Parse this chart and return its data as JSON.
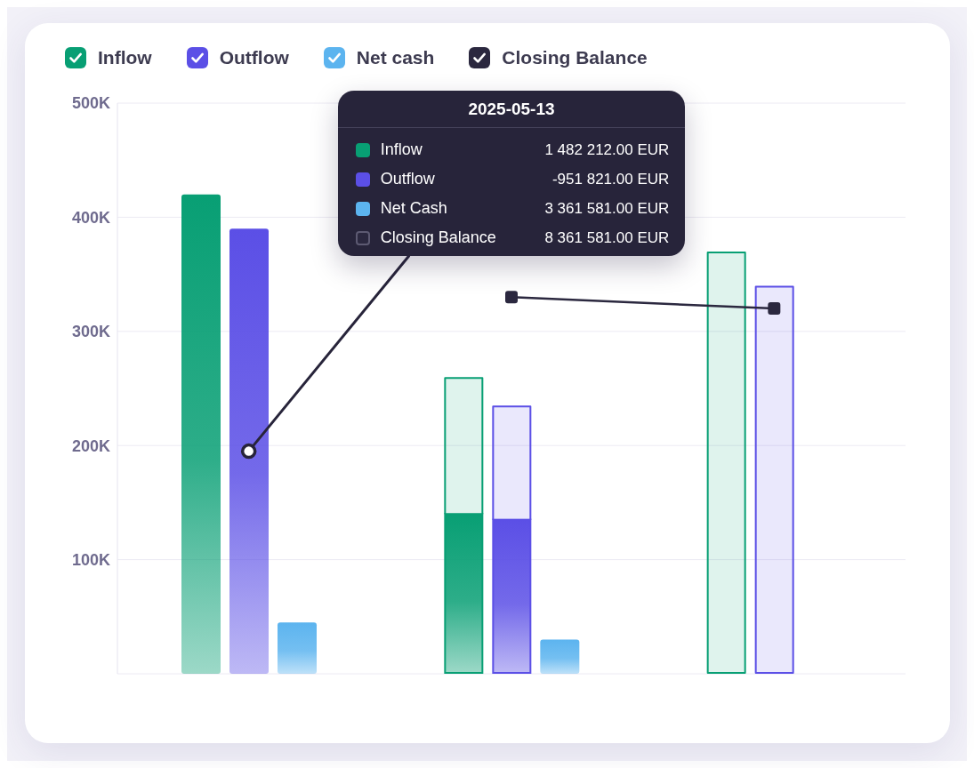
{
  "chart_data": {
    "type": "bar",
    "categories": [
      null,
      null,
      null
    ],
    "series": [
      {
        "name": "Inflow",
        "color": "#089f74",
        "values": [
          420000,
          140000,
          null
        ]
      },
      {
        "name": "Outflow",
        "color": "#5b4fe6",
        "values": [
          390000,
          135000,
          null
        ]
      },
      {
        "name": "Net cash",
        "color": "#5cb4ef",
        "values": [
          45000,
          30000,
          null
        ]
      },
      {
        "color": "#089f74",
        "base": [
          null,
          140000,
          0
        ],
        "values": [
          null,
          120000,
          370000
        ]
      },
      {
        "color": "#5b4fe6",
        "base": [
          null,
          135000,
          0
        ],
        "values": [
          null,
          100000,
          340000
        ]
      },
      {
        "name": "Closing Balance",
        "type": "line",
        "color": "#2b283f",
        "values": [
          null,
          330000,
          320000
        ]
      }
    ],
    "ylim": [
      0,
      500000
    ],
    "yticks": [
      {
        "value": 100000,
        "label": "100K"
      },
      {
        "value": 200000,
        "label": "200K"
      },
      {
        "value": 300000,
        "label": "300K"
      },
      {
        "value": 400000,
        "label": "400K"
      },
      {
        "value": 500000,
        "label": "500K"
      }
    ],
    "grid": "y",
    "legend": "top left",
    "tick_labels": "y",
    "marker": "square",
    "annotations": [
      "2025-05-13",
      "Inflow",
      "1 482 212.00 EUR",
      "Outflow",
      "-951 821.00 EUR",
      "Net Cash",
      "3 361 581.00 EUR",
      "Closing Balance",
      "8 361 581.00 EUR"
    ]
  }
}
